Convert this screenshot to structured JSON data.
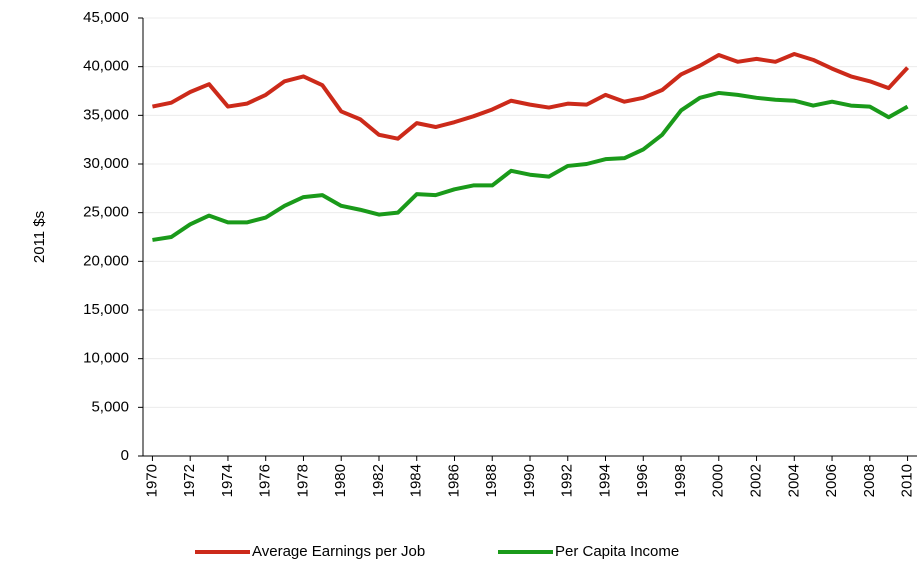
{
  "chart_data": {
    "type": "line",
    "ylabel": "2011 $s",
    "x": [
      1970,
      1971,
      1972,
      1973,
      1974,
      1975,
      1976,
      1977,
      1978,
      1979,
      1980,
      1981,
      1982,
      1983,
      1984,
      1985,
      1986,
      1987,
      1988,
      1989,
      1990,
      1991,
      1992,
      1993,
      1994,
      1995,
      1996,
      1997,
      1998,
      1999,
      2000,
      2001,
      2002,
      2003,
      2004,
      2005,
      2006,
      2007,
      2008,
      2009,
      2010
    ],
    "series": [
      {
        "name": "Average Earnings per Job",
        "color": "#cc2a1a",
        "values": [
          35900,
          36300,
          37400,
          38200,
          35900,
          36200,
          37100,
          38500,
          39000,
          38100,
          35400,
          34600,
          33000,
          32600,
          34200,
          33800,
          34300,
          34900,
          35600,
          36500,
          36100,
          35800,
          36200,
          36100,
          37100,
          36400,
          36800,
          37600,
          39200,
          40100,
          41200,
          40500,
          40800,
          40500,
          41300,
          40700,
          39800,
          39000,
          38500,
          37800,
          39900
        ]
      },
      {
        "name": "Per Capita Income",
        "color": "#1a9a1a",
        "values": [
          22200,
          22500,
          23800,
          24700,
          24000,
          24000,
          24500,
          25700,
          26600,
          26800,
          25700,
          25300,
          24800,
          25000,
          26900,
          26800,
          27400,
          27800,
          27800,
          29300,
          28900,
          28700,
          29800,
          30000,
          30500,
          30600,
          31500,
          33000,
          35500,
          36800,
          37300,
          37100,
          36800,
          36600,
          36500,
          36000,
          36400,
          36000,
          35900,
          34800,
          35900
        ]
      }
    ],
    "xlim": [
      1969.5,
      2010.5
    ],
    "xticks": [
      1970,
      1972,
      1974,
      1976,
      1978,
      1980,
      1982,
      1984,
      1986,
      1988,
      1990,
      1992,
      1994,
      1996,
      1998,
      2000,
      2002,
      2004,
      2006,
      2008,
      2010
    ],
    "ylim": [
      0,
      45000
    ],
    "yticks": [
      0,
      {
        "value": 5000,
        "label": "5,000"
      },
      {
        "value": 10000,
        "label": "10,000"
      },
      {
        "value": 15000,
        "label": "15,000"
      },
      {
        "value": 20000,
        "label": "20,000"
      },
      {
        "value": 25000,
        "label": "25,000"
      },
      {
        "value": 30000,
        "label": "30,000"
      },
      {
        "value": 35000,
        "label": "35,000"
      },
      {
        "value": 40000,
        "label": "40,000"
      },
      {
        "value": 45000,
        "label": "45,000"
      }
    ],
    "grid": true,
    "legend": "bottom"
  }
}
